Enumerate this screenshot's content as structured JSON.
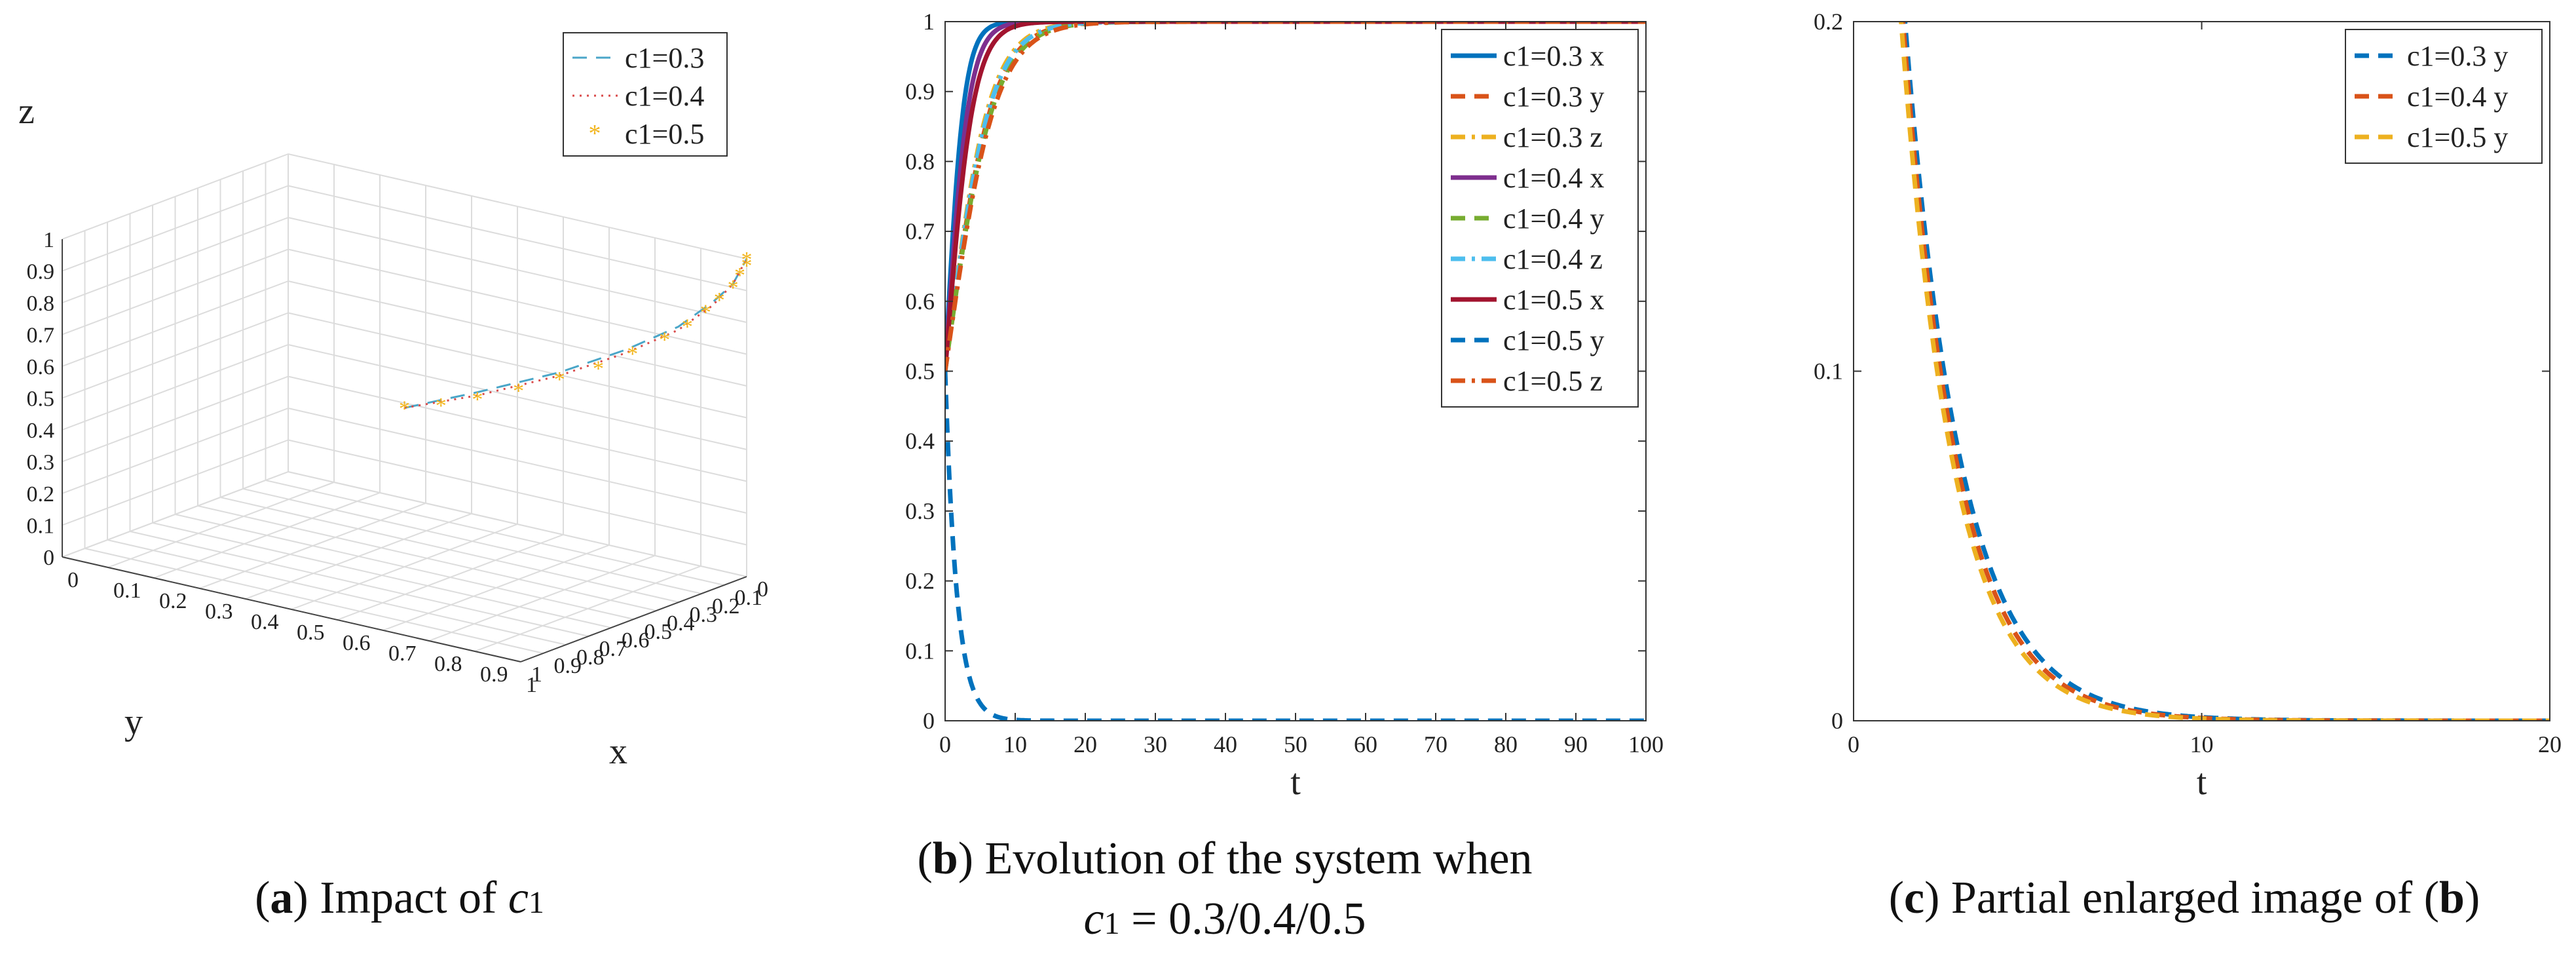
{
  "figure": {
    "captions": {
      "a": {
        "letter": "a",
        "text": "Impact of",
        "symbol": "c",
        "symbol_sub": "1"
      },
      "b": {
        "letter": "b",
        "text": "Evolution of the system when",
        "line2_symbol": "c",
        "line2_sub": "1",
        "line2_value": "= 0.3/0.4/0.5"
      },
      "c": {
        "letter": "c",
        "text": "Partial enlarged image of",
        "ref": "b"
      }
    }
  },
  "chart_data": [
    {
      "id": "a",
      "type": "line3d",
      "xlabel": "x",
      "ylabel": "y",
      "zlabel": "z",
      "xlim": [
        0,
        1
      ],
      "ylim": [
        0,
        1
      ],
      "zlim": [
        0,
        1
      ],
      "xticks": [
        "0",
        "0.1",
        "0.2",
        "0.3",
        "0.4",
        "0.5",
        "0.6",
        "0.7",
        "0.8",
        "0.9",
        "1"
      ],
      "yticks": [
        "0",
        "0.1",
        "0.2",
        "0.3",
        "0.4",
        "0.5",
        "0.6",
        "0.7",
        "0.8",
        "0.9",
        "1"
      ],
      "zticks": [
        "0",
        "0.1",
        "0.2",
        "0.3",
        "0.4",
        "0.5",
        "0.6",
        "0.7",
        "0.8",
        "0.9",
        "1"
      ],
      "grid": true,
      "legend": {
        "placement": "top-right",
        "entries": [
          "c1=0.3",
          "c1=0.4",
          "c1=0.5"
        ]
      },
      "series": [
        {
          "name": "c1=0.3",
          "color": "#4aa6c8",
          "style": "dashed",
          "points": [
            [
              0.5,
              0.5,
              0.5
            ],
            [
              0.6,
              0.62,
              0.55
            ],
            [
              0.72,
              0.74,
              0.62
            ],
            [
              0.82,
              0.83,
              0.7
            ],
            [
              0.9,
              0.9,
              0.78
            ],
            [
              0.95,
              0.95,
              0.86
            ],
            [
              0.98,
              0.98,
              0.92
            ],
            [
              0.99,
              0.99,
              0.96
            ],
            [
              1,
              1,
              1
            ]
          ]
        },
        {
          "name": "c1=0.4",
          "color": "#d94a4a",
          "style": "dotted",
          "points": [
            [
              0.5,
              0.5,
              0.5
            ],
            [
              0.6,
              0.62,
              0.54
            ],
            [
              0.72,
              0.74,
              0.61
            ],
            [
              0.82,
              0.83,
              0.69
            ],
            [
              0.9,
              0.9,
              0.77
            ],
            [
              0.95,
              0.95,
              0.85
            ],
            [
              0.98,
              0.98,
              0.92
            ],
            [
              0.99,
              0.99,
              0.96
            ],
            [
              1,
              1,
              1
            ]
          ]
        },
        {
          "name": "c1=0.5",
          "color": "#f2b51e",
          "style": "markers",
          "points": [
            [
              0.5,
              0.5,
              0.5
            ],
            [
              0.55,
              0.56,
              0.51
            ],
            [
              0.6,
              0.62,
              0.53
            ],
            [
              0.66,
              0.68,
              0.56
            ],
            [
              0.72,
              0.74,
              0.6
            ],
            [
              0.78,
              0.79,
              0.64
            ],
            [
              0.83,
              0.84,
              0.69
            ],
            [
              0.88,
              0.88,
              0.74
            ],
            [
              0.91,
              0.92,
              0.78
            ],
            [
              0.94,
              0.94,
              0.83
            ],
            [
              0.96,
              0.96,
              0.87
            ],
            [
              0.98,
              0.98,
              0.91
            ],
            [
              0.99,
              0.99,
              0.95
            ],
            [
              1,
              1,
              0.98
            ],
            [
              1,
              1,
              1
            ]
          ]
        }
      ]
    },
    {
      "id": "b",
      "type": "line",
      "xlabel": "t",
      "ylabel": "",
      "xlim": [
        0,
        100
      ],
      "ylim": [
        0,
        1
      ],
      "xticks": [
        0,
        10,
        20,
        30,
        40,
        50,
        60,
        70,
        80,
        90,
        100
      ],
      "yticks": [
        0,
        0.1,
        0.2,
        0.3,
        0.4,
        0.5,
        0.6,
        0.7,
        0.8,
        0.9,
        1
      ],
      "legend": {
        "placement": "top-right"
      },
      "series": [
        {
          "name": "c1=0.3 x",
          "color": "#0072bd",
          "dash": "solid",
          "kind": "logistic",
          "r": 0.75
        },
        {
          "name": "c1=0.3 y",
          "color": "#d95319",
          "dash": "dashed",
          "kind": "logistic",
          "r": 0.3
        },
        {
          "name": "c1=0.3 z",
          "color": "#edb120",
          "dash": "dashdot",
          "kind": "logistic",
          "r": 0.32
        },
        {
          "name": "c1=0.4 x",
          "color": "#7e2f8e",
          "dash": "solid",
          "kind": "logistic",
          "r": 0.6
        },
        {
          "name": "c1=0.4 y",
          "color": "#77ac30",
          "dash": "dashed",
          "kind": "logistic",
          "r": 0.29
        },
        {
          "name": "c1=0.4 z",
          "color": "#4dbeee",
          "dash": "dashdot",
          "kind": "logistic",
          "r": 0.31
        },
        {
          "name": "c1=0.5 x",
          "color": "#a2142f",
          "dash": "solid",
          "kind": "logistic",
          "r": 0.5
        },
        {
          "name": "c1=0.5 y",
          "color": "#0072bd",
          "dash": "dashed",
          "kind": "decay",
          "r": 0.6
        },
        {
          "name": "c1=0.5 z",
          "color": "#d95319",
          "dash": "dashdot",
          "kind": "logistic",
          "r": 0.28
        }
      ]
    },
    {
      "id": "c",
      "type": "line",
      "xlabel": "t",
      "ylabel": "",
      "xlim": [
        0,
        20
      ],
      "ylim": [
        0,
        0.2
      ],
      "xticks": [
        0,
        10,
        20
      ],
      "yticks": [
        0,
        0.1,
        0.2
      ],
      "legend": {
        "placement": "top-right"
      },
      "series": [
        {
          "name": "c1=0.3 y",
          "color": "#0072bd",
          "dash": "dashed",
          "kind": "decay",
          "r": 0.62
        },
        {
          "name": "c1=0.4 y",
          "color": "#d95319",
          "dash": "dashed",
          "kind": "decay",
          "r": 0.645
        },
        {
          "name": "c1=0.5 y",
          "color": "#edb120",
          "dash": "dashed",
          "kind": "decay",
          "r": 0.67
        }
      ]
    }
  ]
}
